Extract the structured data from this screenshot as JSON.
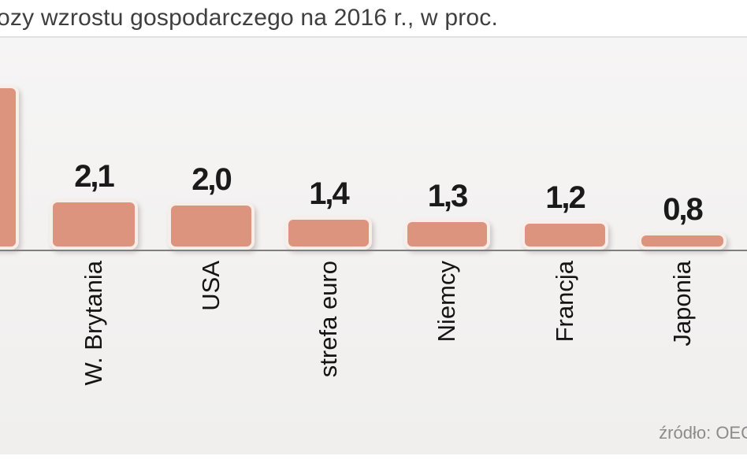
{
  "chart_data": {
    "type": "bar",
    "orientation": "vertical",
    "title": "ozy wzrostu gospodarczego na 2016 r., w proc.",
    "title_note": "title is cut off at the left edge of the screenshot",
    "categories": [
      "W. Brytania",
      "USA",
      "strefa euro",
      "Niemcy",
      "Francja",
      "Japonia"
    ],
    "values": [
      2.1,
      2.0,
      1.4,
      1.3,
      1.2,
      0.8
    ],
    "value_labels": [
      "2,1",
      "2,0",
      "1,4",
      "1,3",
      "1,2",
      "0,8"
    ],
    "partial_left_bar": {
      "label_visible": false,
      "value_label_visible": false,
      "estimated_value": 6.6,
      "note": "a much taller bar is cut off at the left edge; its label and value are outside the screenshot"
    },
    "source_label": "źródło: OEC",
    "source_note": "source credit cut off at the right edge",
    "grid": false,
    "legend": false,
    "category_label_rotation_deg": 90,
    "colors": {
      "bar_fill": "#dd947e",
      "bar_border": "#f8eee9",
      "panel_bg": "#f3f2f1",
      "axis": "#7f7f7f",
      "value_text": "#1a1a1a",
      "category_text": "#141414",
      "title_text": "#3f3f3f",
      "source_text": "#8b8b8b"
    }
  }
}
